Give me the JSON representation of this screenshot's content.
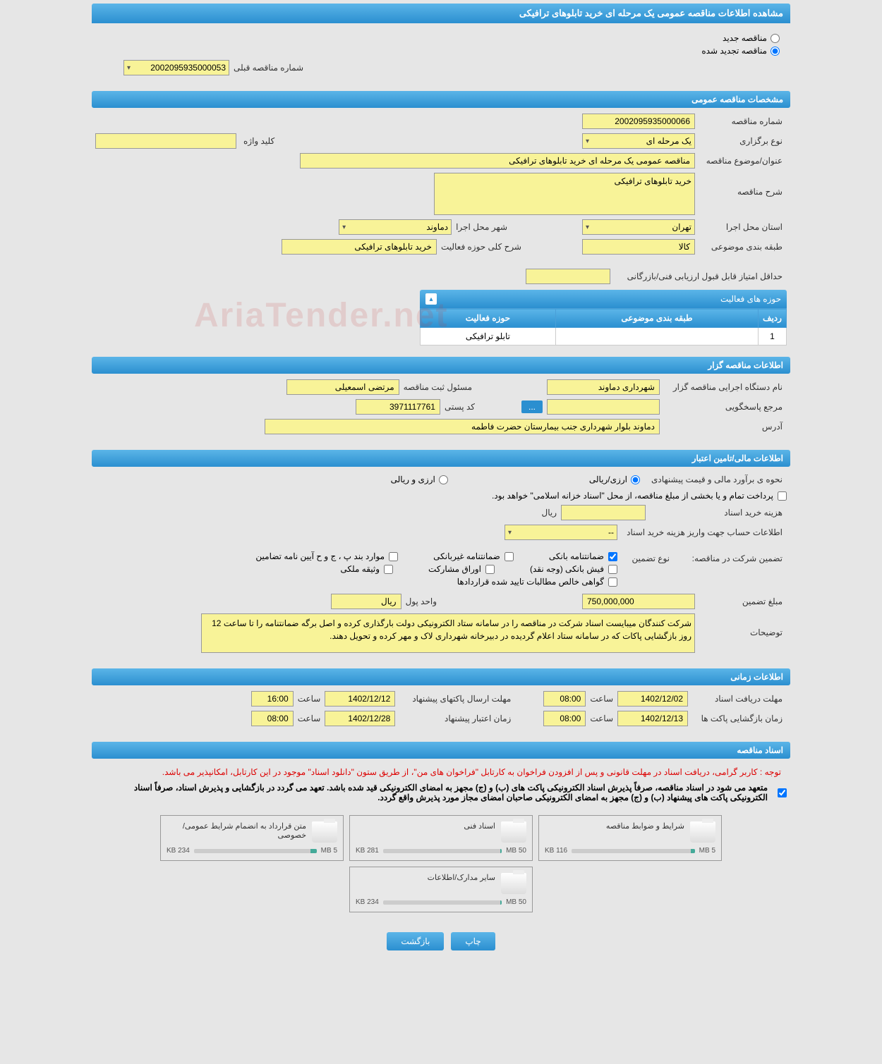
{
  "header": {
    "title": "مشاهده اطلاعات مناقصه عمومی یک مرحله ای خرید تابلوهای ترافیکی"
  },
  "radio": {
    "new": "مناقصه جدید",
    "renewed": "مناقصه تجدید شده"
  },
  "prev_tender": {
    "label": "شماره مناقصه قبلی",
    "value": "2002095935000053"
  },
  "section_general": "مشخصات مناقصه عمومی",
  "general": {
    "tender_no_label": "شماره مناقصه",
    "tender_no": "2002095935000066",
    "type_label": "نوع برگزاری",
    "type": "یک مرحله ای",
    "keyword_label": "کلید واژه",
    "keyword": "",
    "subject_label": "عنوان/موضوع مناقصه",
    "subject": "مناقصه عمومی یک مرحله ای خرید تابلوهای ترافیکی",
    "desc_label": "شرح مناقصه",
    "desc": "خرید تابلوهای ترافیکی",
    "province_label": "استان محل اجرا",
    "province": "تهران",
    "city_label": "شهر محل اجرا",
    "city": "دماوند",
    "category_label": "طبقه بندی موضوعی",
    "category": "کالا",
    "activity_desc_label": "شرح کلی حوزه فعالیت",
    "activity_desc": "خرید تابلوهای ترافیکی",
    "min_score_label": "حداقل امتیاز قابل قبول ارزیابی فنی/بازرگانی",
    "min_score": ""
  },
  "activity_panel": {
    "title": "حوزه های فعالیت",
    "columns": [
      "ردیف",
      "طبقه بندی موضوعی",
      "حوزه فعالیت"
    ],
    "rows": [
      [
        "1",
        "",
        "تابلو ترافیکی"
      ]
    ]
  },
  "section_organizer": "اطلاعات مناقصه گزار",
  "organizer": {
    "name_label": "نام دستگاه اجرایی مناقصه گزار",
    "name": "شهرداری دماوند",
    "registrar_label": "مسئول ثبت مناقصه",
    "registrar": "مرتضی اسمعیلی",
    "contact_label": "مرجع پاسخگویی",
    "contact": "",
    "postal_label": "کد پستی",
    "postal": "3971117761",
    "address_label": "آدرس",
    "address": "دماوند بلوار شهرداری  جنب بیمارستان حضرت فاطمه"
  },
  "section_financial": "اطلاعات مالی/تامین اعتبار",
  "financial": {
    "estimate_label": "نحوه ی برآورد مالی و قیمت پیشنهادی",
    "opt_currency": "ارزی/ریالی",
    "opt_currency2": "ارزی و ریالی",
    "payment_note": "پرداخت تمام و یا بخشی از مبلغ مناقصه، از محل \"اسناد خزانه اسلامی\" خواهد بود.",
    "doc_fee_label": "هزینه خرید اسناد",
    "doc_fee": "",
    "doc_fee_unit": "ریال",
    "account_label": "اطلاعات حساب جهت واریز هزینه خرید اسناد",
    "account": "--",
    "guarantee_section_label": "تضمین شرکت در مناقصه:",
    "guarantee_type_label": "نوع تضمین",
    "g1": "ضمانتنامه بانکی",
    "g2": "ضمانتنامه غیربانکی",
    "g3": "موارد بند پ ، ج و ح آیین نامه تضامین",
    "g4": "فیش بانکی (وجه نقد)",
    "g5": "اوراق مشارکت",
    "g6": "وثیقه ملکی",
    "g7": "گواهی خالص مطالبات تایید شده قراردادها",
    "guarantee_amount_label": "مبلغ تضمین",
    "guarantee_amount": "750,000,000",
    "currency_unit_label": "واحد پول",
    "currency_unit": "ریال",
    "notes_label": "توضیحات",
    "notes": "شرکت کنندگان میبایست  اسناد شرکت در مناقصه را در سامانه ستاد الکترونیکی دولت بارگذاری کرده و اصل برگه ضمانتنامه  را تا ساعت 12 روز بازگشایی پاکات که در سامانه ستاد اعلام گردیده در دبیرخانه شهرداری لاک و مهر کرده و تحویل دهند."
  },
  "section_time": "اطلاعات زمانی",
  "time": {
    "receive_label": "مهلت دریافت اسناد",
    "receive_date": "1402/12/02",
    "receive_time_label": "ساعت",
    "receive_time": "08:00",
    "send_label": "مهلت ارسال پاکتهای پیشنهاد",
    "send_date": "1402/12/12",
    "send_time_label": "ساعت",
    "send_time": "16:00",
    "open_label": "زمان بازگشایی پاکت ها",
    "open_date": "1402/12/13",
    "open_time_label": "ساعت",
    "open_time": "08:00",
    "validity_label": "زمان اعتبار پیشنهاد",
    "validity_date": "1402/12/28",
    "validity_time_label": "ساعت",
    "validity_time": "08:00"
  },
  "section_docs": "اسناد مناقصه",
  "docs_notice1": "توجه : کاربر گرامی، دریافت اسناد در مهلت قانونی و پس از افزودن فراخوان به کارتابل \"فراخوان های من\"، از طریق ستون \"دانلود اسناد\" موجود در این کارتابل، امکانپذیر می باشد.",
  "docs_notice2": "متعهد می شود در اسناد مناقصه، صرفاً پذیرش اسناد الکترونیکی پاکت های (ب) و (ج) مجهز به امضای الکترونیکی قید شده باشد. تعهد می گردد در بازگشایی و پذیرش اسناد، صرفاً اسناد الکترونیکی پاکت های پیشنهاد (ب) و (ج) مجهز به امضای الکترونیکی صاحبان امضای مجاز مورد پذیرش واقع گردد.",
  "files": [
    {
      "title": "شرایط و ضوابط مناقصه",
      "size": "116 KB",
      "max": "5 MB",
      "pct": 3
    },
    {
      "title": "اسناد فنی",
      "size": "281 KB",
      "max": "50 MB",
      "pct": 1
    },
    {
      "title": "متن قرارداد به انضمام شرایط عمومی/خصوصی",
      "size": "234 KB",
      "max": "5 MB",
      "pct": 5
    },
    {
      "title": "سایر مدارک/اطلاعات",
      "size": "234 KB",
      "max": "50 MB",
      "pct": 1
    }
  ],
  "buttons": {
    "print": "چاپ",
    "back": "بازگشت"
  },
  "watermark": "AriaTender.net"
}
